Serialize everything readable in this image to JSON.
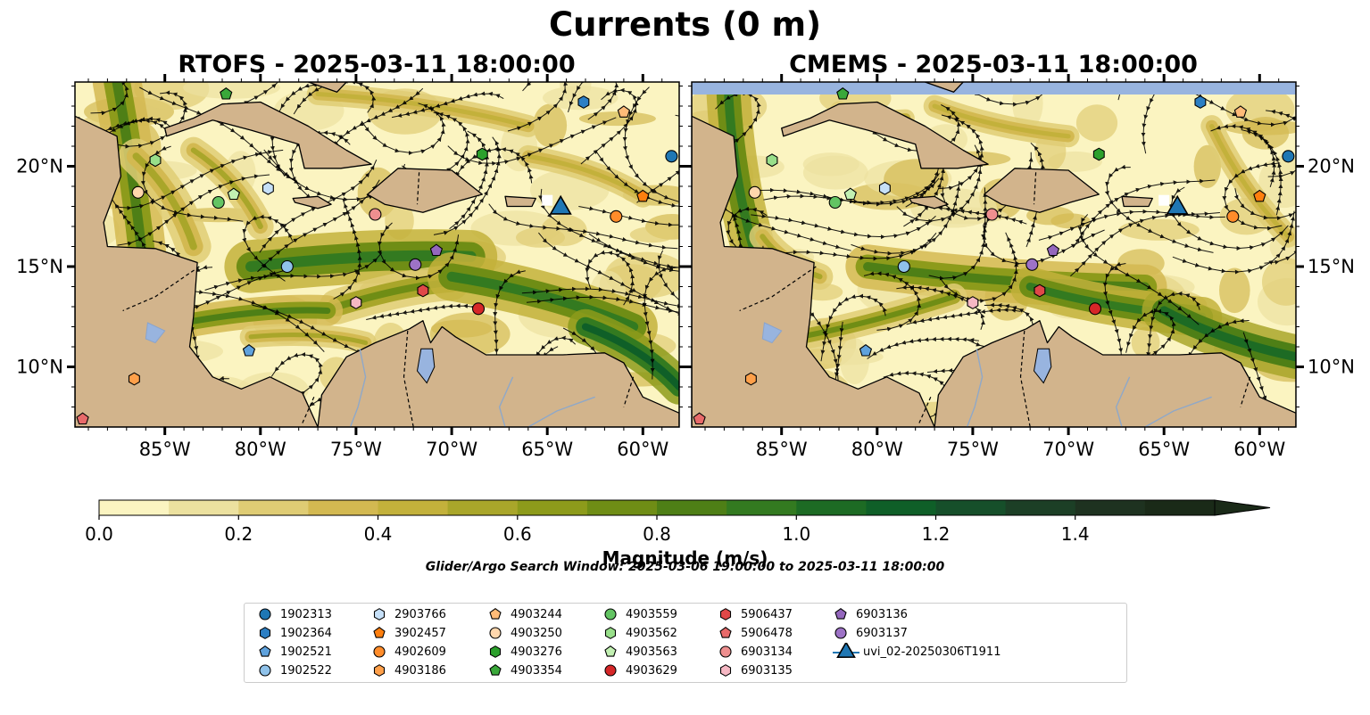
{
  "title": "Currents (0 m)",
  "panels": [
    {
      "id": "rtofs",
      "title": "RTOFS - 2025-03-11 18:00:00"
    },
    {
      "id": "cmems",
      "title": "CMEMS - 2025-03-11 18:00:00"
    }
  ],
  "map": {
    "lon_range": [
      -89.7,
      -58.1
    ],
    "lat_range": [
      7.0,
      24.2
    ],
    "lon_ticks": [
      "85°W",
      "80°W",
      "75°W",
      "70°W",
      "65°W",
      "60°W"
    ],
    "lat_ticks": [
      "20°N",
      "15°N",
      "10°N"
    ],
    "land_color": "#d2b48c",
    "water_color": "#98b4df"
  },
  "colorbar": {
    "label": "Magnitude (m/s)",
    "ticks": [
      "0.0",
      "0.2",
      "0.4",
      "0.6",
      "0.8",
      "1.0",
      "1.2",
      "1.4"
    ],
    "range": [
      0,
      1.6
    ],
    "extend": "max",
    "colors": [
      "#fbf4c1",
      "#ece19f",
      "#dfcc74",
      "#d3b951",
      "#c3b13b",
      "#a9a62a",
      "#8d9b1b",
      "#6f8d15",
      "#4e7f16",
      "#337a20",
      "#1d6b24",
      "#0f5f28",
      "#164f2a",
      "#1c3f26",
      "#1e3220",
      "#1a2a18"
    ]
  },
  "search_window": "Glider/Argo Search Window: 2025-03-06 19:00:00 to 2025-03-11 18:00:00",
  "legend": [
    {
      "label": "1902313",
      "marker": "circle",
      "color": "#1f77b4"
    },
    {
      "label": "1902364",
      "marker": "hexagon",
      "color": "#2c7fc4"
    },
    {
      "label": "1902521",
      "marker": "pentagon",
      "color": "#5fa2dd"
    },
    {
      "label": "1902522",
      "marker": "circle",
      "color": "#8fc2ea"
    },
    {
      "label": "2903766",
      "marker": "hexagon",
      "color": "#c6e0f8"
    },
    {
      "label": "3902457",
      "marker": "pentagon",
      "color": "#ff7f0e"
    },
    {
      "label": "4902609",
      "marker": "circle",
      "color": "#ff8c2a"
    },
    {
      "label": "4903186",
      "marker": "hexagon",
      "color": "#ffa04a"
    },
    {
      "label": "4903244",
      "marker": "pentagon",
      "color": "#ffbb78"
    },
    {
      "label": "4903250",
      "marker": "circle",
      "color": "#ffd7ad"
    },
    {
      "label": "4903276",
      "marker": "hexagon",
      "color": "#2ca02c"
    },
    {
      "label": "4903354",
      "marker": "pentagon",
      "color": "#3aa83a"
    },
    {
      "label": "4903559",
      "marker": "circle",
      "color": "#63c463"
    },
    {
      "label": "4903562",
      "marker": "hexagon",
      "color": "#98df8a"
    },
    {
      "label": "4903563",
      "marker": "pentagon",
      "color": "#c2f0b2"
    },
    {
      "label": "4903629",
      "marker": "circle",
      "color": "#d62728"
    },
    {
      "label": "5906437",
      "marker": "hexagon",
      "color": "#e04848"
    },
    {
      "label": "5906478",
      "marker": "pentagon",
      "color": "#e86a6a"
    },
    {
      "label": "6903134",
      "marker": "circle",
      "color": "#ee8f8f"
    },
    {
      "label": "6903135",
      "marker": "hexagon",
      "color": "#f6b8c4"
    },
    {
      "label": "6903136",
      "marker": "pentagon",
      "color": "#9467bd"
    },
    {
      "label": "6903137",
      "marker": "circle",
      "color": "#9d72c6"
    },
    {
      "label": "uvi_02-20250306T1911",
      "marker": "triangle",
      "color": "#1f77b4"
    }
  ],
  "markers": [
    {
      "id": "1902313",
      "lon": -58.5,
      "lat": 20.5
    },
    {
      "id": "1902364",
      "lon": -63.1,
      "lat": 23.2
    },
    {
      "id": "1902521",
      "lon": -80.6,
      "lat": 10.8
    },
    {
      "id": "1902522",
      "lon": -78.6,
      "lat": 15.0
    },
    {
      "id": "2903766",
      "lon": -79.6,
      "lat": 18.9
    },
    {
      "id": "3902457",
      "lon": -60.0,
      "lat": 18.5
    },
    {
      "id": "4902609",
      "lon": -61.4,
      "lat": 17.5
    },
    {
      "id": "4903186",
      "lon": -86.6,
      "lat": 9.4
    },
    {
      "id": "4903244",
      "lon": -61.0,
      "lat": 22.7
    },
    {
      "id": "4903250",
      "lon": -86.4,
      "lat": 18.7
    },
    {
      "id": "4903276",
      "lon": -68.4,
      "lat": 20.6
    },
    {
      "id": "4903354",
      "lon": -81.8,
      "lat": 23.6
    },
    {
      "id": "4903559",
      "lon": -82.2,
      "lat": 18.2
    },
    {
      "id": "4903562",
      "lon": -85.5,
      "lat": 20.3
    },
    {
      "id": "4903563",
      "lon": -81.4,
      "lat": 18.6
    },
    {
      "id": "4903629",
      "lon": -68.6,
      "lat": 12.9
    },
    {
      "id": "5906437",
      "lon": -71.5,
      "lat": 13.8
    },
    {
      "id": "5906478",
      "lon": -89.3,
      "lat": 7.4
    },
    {
      "id": "6903134",
      "lon": -74.0,
      "lat": 17.6
    },
    {
      "id": "6903135",
      "lon": -75.0,
      "lat": 13.2
    },
    {
      "id": "6903136",
      "lon": -70.8,
      "lat": 15.8
    },
    {
      "id": "6903137",
      "lon": -71.9,
      "lat": 15.1
    },
    {
      "id": "uvi_02-20250306T1911",
      "lon": -64.3,
      "lat": 18.0
    }
  ]
}
